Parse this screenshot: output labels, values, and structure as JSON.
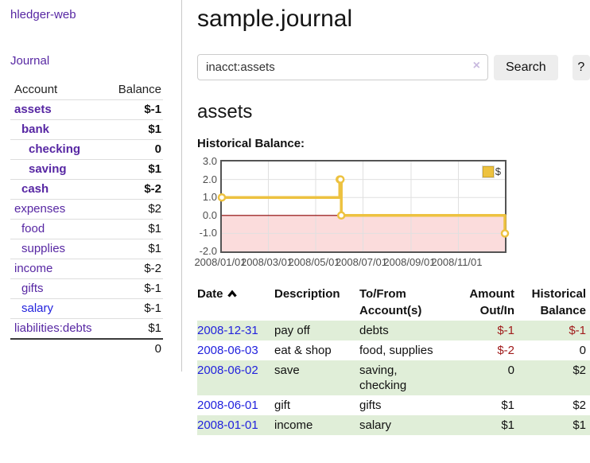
{
  "app": {
    "brand": "hledger-web",
    "nav_journal": "Journal"
  },
  "colors": {
    "accent_purple": "#5727a3",
    "link_blue": "#2222dd",
    "negative_strong": "#a11c1c",
    "negative_soft": "#c27878",
    "row_stripe_green": "#e0eed8",
    "chart_line_gold": "#edc240",
    "chart_zero_line": "#8b0000",
    "chart_negative_region": "#fbdcdc"
  },
  "sidebar": {
    "headers": {
      "account": "Account",
      "balance": "Balance"
    },
    "accounts": [
      {
        "name": "assets",
        "balance": "$-1",
        "depth": 1,
        "emph": true,
        "neg": "strong"
      },
      {
        "name": "bank",
        "balance": "$1",
        "depth": 2,
        "emph": true,
        "neg": null
      },
      {
        "name": "checking",
        "balance": "0",
        "depth": 3,
        "emph": true,
        "neg": null
      },
      {
        "name": "saving",
        "balance": "$1",
        "depth": 3,
        "emph": true,
        "neg": null
      },
      {
        "name": "cash",
        "balance": "$-2",
        "depth": 2,
        "emph": true,
        "neg": "strong"
      },
      {
        "name": "expenses",
        "balance": "$2",
        "depth": 1,
        "emph": false,
        "neg": null
      },
      {
        "name": "food",
        "balance": "$1",
        "depth": 2,
        "emph": false,
        "neg": null
      },
      {
        "name": "supplies",
        "balance": "$1",
        "depth": 2,
        "emph": false,
        "neg": null
      },
      {
        "name": "income",
        "balance": "$-2",
        "depth": 1,
        "emph": false,
        "neg": "soft"
      },
      {
        "name": "gifts",
        "balance": "$-1",
        "depth": 2,
        "emph": false,
        "neg": "soft"
      },
      {
        "name": "salary",
        "balance": "$-1",
        "depth": 2,
        "emph": false,
        "neg": "soft",
        "link_blue": true
      },
      {
        "name": "liabilities:debts",
        "balance": "$1",
        "depth": 1,
        "emph": false,
        "neg": null
      }
    ],
    "total": "0"
  },
  "header": {
    "title": "sample.journal"
  },
  "search": {
    "query": "inacct:assets",
    "clear_icon": "×",
    "button_label": "Search",
    "help_label": "?"
  },
  "account_page": {
    "heading": "assets"
  },
  "chart_data": {
    "type": "line",
    "step": true,
    "title": "Historical Balance:",
    "series": [
      {
        "name": "$",
        "color": "#edc240",
        "points": [
          [
            "2008-01-01",
            1
          ],
          [
            "2008-06-01",
            2
          ],
          [
            "2008-06-02",
            2
          ],
          [
            "2008-06-03",
            0
          ],
          [
            "2008-12-31",
            -1
          ]
        ]
      }
    ],
    "x_range": [
      "2008-01-01",
      "2008-12-31"
    ],
    "ylim": [
      -2,
      3
    ],
    "yticks": [
      "3.0",
      "2.0",
      "1.0",
      "0.0",
      "-1.0",
      "-2.0"
    ],
    "xticks": [
      "2008/01/01",
      "2008/03/01",
      "2008/05/01",
      "2008/07/01",
      "2008/09/01",
      "2008/11/01"
    ],
    "legend": {
      "label": "$",
      "position": "top-right"
    },
    "grid": true
  },
  "register": {
    "headers": {
      "date": "Date",
      "description": "Description",
      "to_from": "To/From\nAccount(s)",
      "amount": "Amount\nOut/In",
      "balance": "Historical\nBalance"
    },
    "sort_icon": "chevron-up",
    "rows": [
      {
        "date": "2008-12-31",
        "description": "pay off",
        "to_from": "debts",
        "amount": "$-1",
        "amount_neg": true,
        "balance": "$-1",
        "balance_neg": true
      },
      {
        "date": "2008-06-03",
        "description": "eat & shop",
        "to_from": "food, supplies",
        "amount": "$-2",
        "amount_neg": true,
        "balance": "0",
        "balance_neg": false
      },
      {
        "date": "2008-06-02",
        "description": "save",
        "to_from": "saving,\nchecking",
        "amount": "0",
        "amount_neg": false,
        "balance": "$2",
        "balance_neg": false
      },
      {
        "date": "2008-06-01",
        "description": "gift",
        "to_from": "gifts",
        "amount": "$1",
        "amount_neg": false,
        "balance": "$2",
        "balance_neg": false
      },
      {
        "date": "2008-01-01",
        "description": "income",
        "to_from": "salary",
        "amount": "$1",
        "amount_neg": false,
        "balance": "$1",
        "balance_neg": false
      }
    ]
  }
}
